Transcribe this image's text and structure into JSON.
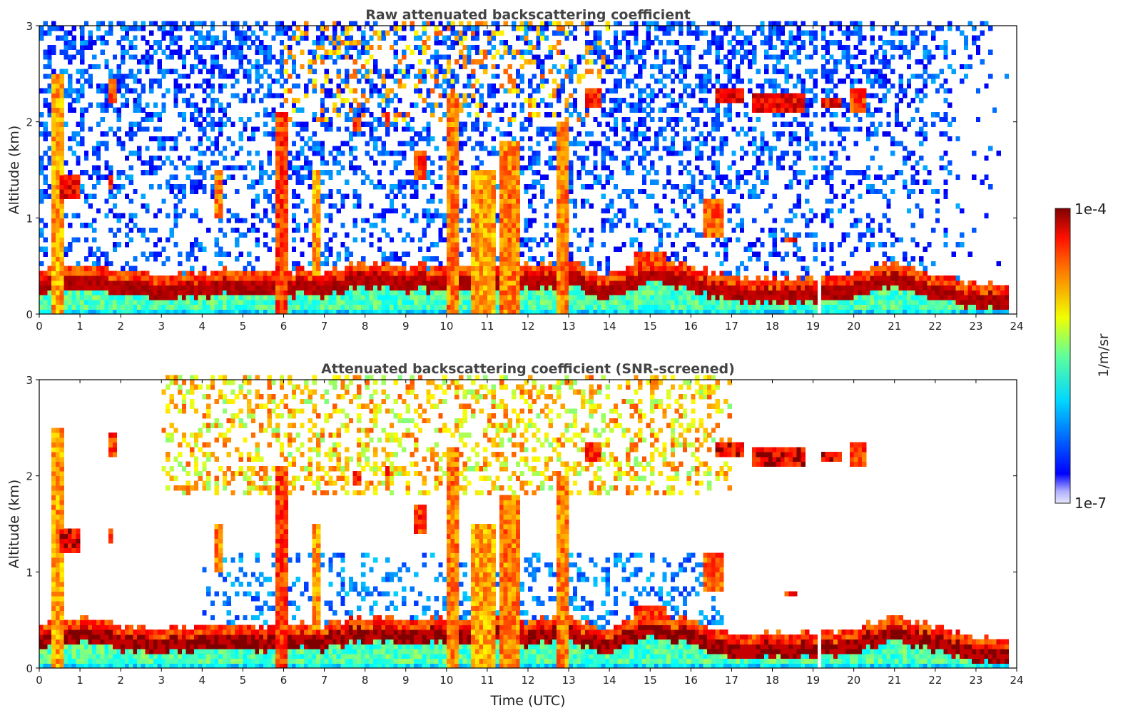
{
  "chart_data": [
    {
      "type": "heatmap",
      "title": "Raw attenuated backscattering coefficient",
      "xlabel": "",
      "ylabel": "Altitude (km)",
      "xlim": [
        0,
        24
      ],
      "ylim": [
        0,
        3
      ],
      "xticks": [
        "0",
        "1",
        "2",
        "3",
        "4",
        "5",
        "6",
        "7",
        "8",
        "9",
        "10",
        "11",
        "12",
        "13",
        "14",
        "15",
        "16",
        "17",
        "18",
        "19",
        "20",
        "21",
        "22",
        "23",
        "24"
      ],
      "yticks": [
        "0",
        "1",
        "2",
        "3"
      ],
      "screened": false
    },
    {
      "type": "heatmap",
      "title": "Attenuated backscattering coefficient (SNR-screened)",
      "xlabel": "Time (UTC)",
      "ylabel": "Altitude (km)",
      "xlim": [
        0,
        24
      ],
      "ylim": [
        0,
        3
      ],
      "xticks": [
        "0",
        "1",
        "2",
        "3",
        "4",
        "5",
        "6",
        "7",
        "8",
        "9",
        "10",
        "11",
        "12",
        "13",
        "14",
        "15",
        "16",
        "17",
        "18",
        "19",
        "20",
        "21",
        "22",
        "23",
        "24"
      ],
      "yticks": [
        "0",
        "1",
        "2",
        "3"
      ],
      "screened": true
    }
  ],
  "colorbar": {
    "label": "1/m/sr",
    "max_label": "1e-4",
    "min_label": "1e-7",
    "log10_range": [
      -7,
      -4
    ],
    "colormap": "jet"
  },
  "field": {
    "data_end_hour": 23.8,
    "gaps_hours": [
      [
        19.1,
        19.2
      ],
      [
        20.68,
        20.75
      ]
    ],
    "aerosol_layer_top_km": {
      "hours": [
        0,
        1,
        2,
        3,
        4,
        5,
        6,
        7,
        8,
        9,
        10,
        11,
        12,
        13,
        14,
        15,
        16,
        17,
        18,
        19,
        20,
        21,
        22,
        23,
        24
      ],
      "height": [
        0.3,
        0.38,
        0.3,
        0.25,
        0.3,
        0.3,
        0.3,
        0.3,
        0.4,
        0.35,
        0.35,
        0.35,
        0.35,
        0.4,
        0.25,
        0.45,
        0.35,
        0.22,
        0.22,
        0.22,
        0.25,
        0.4,
        0.27,
        0.17,
        0.15
      ]
    },
    "clouds": [
      {
        "t": [
          0.3,
          0.55
        ],
        "z": [
          0.0,
          2.5
        ],
        "log10_beta": -4.6
      },
      {
        "t": [
          0.55,
          0.95
        ],
        "z": [
          1.2,
          1.45
        ],
        "log10_beta": -4.1
      },
      {
        "t": [
          1.7,
          1.85
        ],
        "z": [
          1.3,
          1.45
        ],
        "log10_beta": -4.2
      },
      {
        "t": [
          1.75,
          1.95
        ],
        "z": [
          2.2,
          2.45
        ],
        "log10_beta": -4.3
      },
      {
        "t": [
          4.3,
          4.5
        ],
        "z": [
          1.0,
          1.5
        ],
        "log10_beta": -4.5
      },
      {
        "t": [
          5.8,
          6.1
        ],
        "z": [
          0.0,
          2.1
        ],
        "log10_beta": -4.3
      },
      {
        "t": [
          6.7,
          6.85
        ],
        "z": [
          0.4,
          1.5
        ],
        "log10_beta": -4.6
      },
      {
        "t": [
          7.7,
          7.9
        ],
        "z": [
          1.9,
          2.05
        ],
        "log10_beta": -4.3
      },
      {
        "t": [
          8.5,
          8.6
        ],
        "z": [
          1.95,
          2.1
        ],
        "log10_beta": -4.3
      },
      {
        "t": [
          9.2,
          9.5
        ],
        "z": [
          1.4,
          1.7
        ],
        "log10_beta": -4.3
      },
      {
        "t": [
          10.0,
          10.3
        ],
        "z": [
          0.0,
          2.3
        ],
        "log10_beta": -4.5
      },
      {
        "t": [
          10.6,
          11.2
        ],
        "z": [
          0.0,
          1.5
        ],
        "log10_beta": -4.6
      },
      {
        "t": [
          11.3,
          11.8
        ],
        "z": [
          0.0,
          1.8
        ],
        "log10_beta": -4.5
      },
      {
        "t": [
          12.7,
          13.0
        ],
        "z": [
          0.0,
          2.0
        ],
        "log10_beta": -4.5
      },
      {
        "t": [
          13.4,
          13.8
        ],
        "z": [
          2.15,
          2.35
        ],
        "log10_beta": -4.2
      },
      {
        "t": [
          14.6,
          15.4
        ],
        "z": [
          0.45,
          0.65
        ],
        "log10_beta": -4.3
      },
      {
        "t": [
          16.3,
          16.8
        ],
        "z": [
          0.8,
          1.2
        ],
        "log10_beta": -4.4
      },
      {
        "t": [
          16.6,
          17.3
        ],
        "z": [
          2.2,
          2.35
        ],
        "log10_beta": -4.1
      },
      {
        "t": [
          17.5,
          18.8
        ],
        "z": [
          2.1,
          2.3
        ],
        "log10_beta": -4.1
      },
      {
        "t": [
          18.3,
          18.6
        ],
        "z": [
          0.75,
          0.82
        ],
        "log10_beta": -4.2
      },
      {
        "t": [
          19.2,
          19.7
        ],
        "z": [
          2.15,
          2.25
        ],
        "log10_beta": -4.1
      },
      {
        "t": [
          19.9,
          20.3
        ],
        "z": [
          2.1,
          2.35
        ],
        "log10_beta": -4.3
      }
    ]
  }
}
